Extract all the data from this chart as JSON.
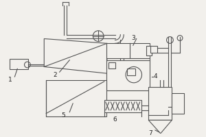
{
  "bg_color": "#f2f0ec",
  "line_color": "#555555",
  "lw": 0.8,
  "label_fontsize": 6.5,
  "label_color": "#222222"
}
